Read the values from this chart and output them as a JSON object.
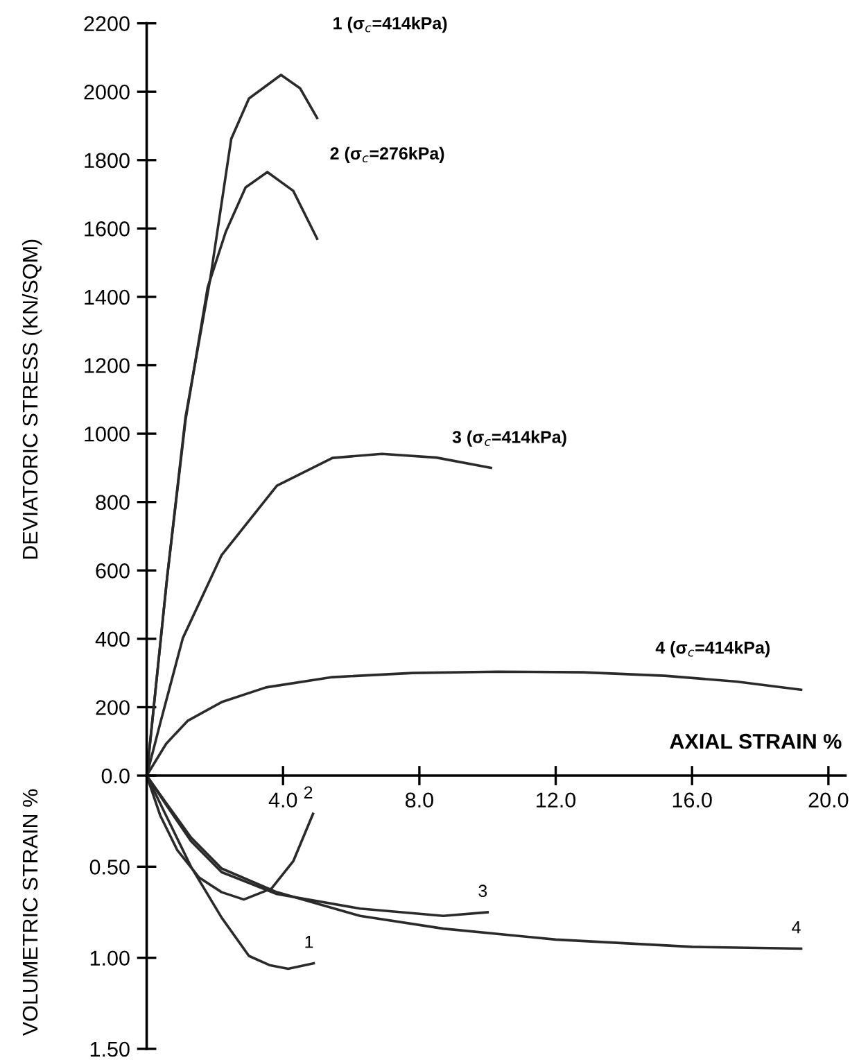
{
  "chart_data": [
    {
      "type": "line",
      "ylabel": "DEVIATORIC STRESS (KN/SQM)",
      "xlabel": "AXIAL STRAIN %",
      "xlim": [
        0,
        20.5
      ],
      "xticks": [
        {
          "value": 4,
          "label": "4.0"
        },
        {
          "value": 8,
          "label": "8.0"
        },
        {
          "value": 12,
          "label": "12.0"
        },
        {
          "value": 16,
          "label": "16.0"
        },
        {
          "value": 20,
          "label": "20.0"
        }
      ],
      "ylim": [
        0,
        2200
      ],
      "yticks": [
        {
          "value": 0,
          "label": "0.0"
        },
        200,
        400,
        600,
        800,
        1000,
        1200,
        1400,
        1600,
        1800,
        2000,
        2200
      ],
      "series": [
        {
          "color": "#2a2a2a",
          "x": [
            0,
            0.3,
            0.6,
            1.14,
            1.87,
            2.48,
            3.0,
            3.94,
            4.5,
            5.0
          ],
          "values": [
            0,
            290,
            580,
            1049,
            1456,
            1862,
            1980,
            2049,
            2010,
            1923
          ]
        },
        {
          "color": "#2a2a2a",
          "x": [
            0,
            0.3,
            0.6,
            1.14,
            1.79,
            2.32,
            2.9,
            3.54,
            4.3,
            5.0
          ],
          "values": [
            0,
            290,
            580,
            1040,
            1428,
            1590,
            1720,
            1765,
            1710,
            1570
          ]
        },
        {
          "color": "#2a2a2a",
          "x": [
            0,
            0.41,
            1.06,
            2.2,
            3.82,
            5.45,
            6.9,
            8.5,
            10.1
          ],
          "values": [
            0,
            158,
            402,
            645,
            848,
            929,
            941,
            930,
            900
          ]
        },
        {
          "color": "#2a2a2a",
          "x": [
            0,
            0.57,
            1.2,
            2.2,
            3.5,
            5.45,
            7.8,
            10.3,
            12.8,
            15.2,
            17.3,
            19.2
          ],
          "values": [
            0,
            93,
            160,
            215,
            258,
            288,
            300,
            304,
            302,
            292,
            275,
            251
          ]
        }
      ],
      "annotations": [
        "1 (σ$_{c}$=414kPa)",
        "2 (σ$_{c}$=276kPa)",
        "3 (σ$_{c}$=414kPa)",
        "4 (σ$_{c}$=414kPa)"
      ]
    },
    {
      "type": "line",
      "ylabel": "VOLUMETRIC STRAIN %",
      "xlim": [
        0,
        20.5
      ],
      "ylim": [
        1.5,
        0
      ],
      "yticks": [
        {
          "value": 0.5,
          "label": "0.50"
        },
        {
          "value": 1.0,
          "label": "1.00"
        },
        {
          "value": 1.5,
          "label": "1.50"
        }
      ],
      "tick_labels": "y",
      "series": [
        {
          "color": "#2a2a2a",
          "x": [
            0,
            0.57,
            1.3,
            2.2,
            3.0,
            3.6,
            4.15,
            4.9
          ],
          "values": [
            0,
            0.22,
            0.5,
            0.78,
            0.99,
            1.04,
            1.06,
            1.03
          ]
        },
        {
          "color": "#2a2a2a",
          "x": [
            0,
            0.4,
            0.9,
            1.54,
            2.2,
            2.85,
            3.66,
            4.3,
            4.88
          ],
          "values": [
            0,
            0.22,
            0.41,
            0.56,
            0.64,
            0.68,
            0.62,
            0.47,
            0.21
          ]
        },
        {
          "color": "#2a2a2a",
          "x": [
            0,
            0.57,
            1.3,
            2.2,
            3.82,
            6.26,
            8.7,
            10.0
          ],
          "values": [
            0,
            0.16,
            0.36,
            0.53,
            0.65,
            0.73,
            0.77,
            0.75
          ]
        },
        {
          "color": "#2a2a2a",
          "x": [
            0,
            0.57,
            1.3,
            2.2,
            3.82,
            6.26,
            8.7,
            12.0,
            16.0,
            19.2
          ],
          "values": [
            0,
            0.15,
            0.34,
            0.51,
            0.64,
            0.77,
            0.84,
            0.9,
            0.94,
            0.95
          ]
        }
      ],
      "annotations": [
        {
          "text": "1",
          "x": 4.9,
          "y": 1.03
        },
        {
          "text": "2",
          "x": 4.88,
          "y": 0.21
        },
        {
          "text": "3",
          "x": 10.0,
          "y": 0.75
        },
        {
          "text": "4",
          "x": 19.2,
          "y": 0.95
        }
      ]
    }
  ]
}
